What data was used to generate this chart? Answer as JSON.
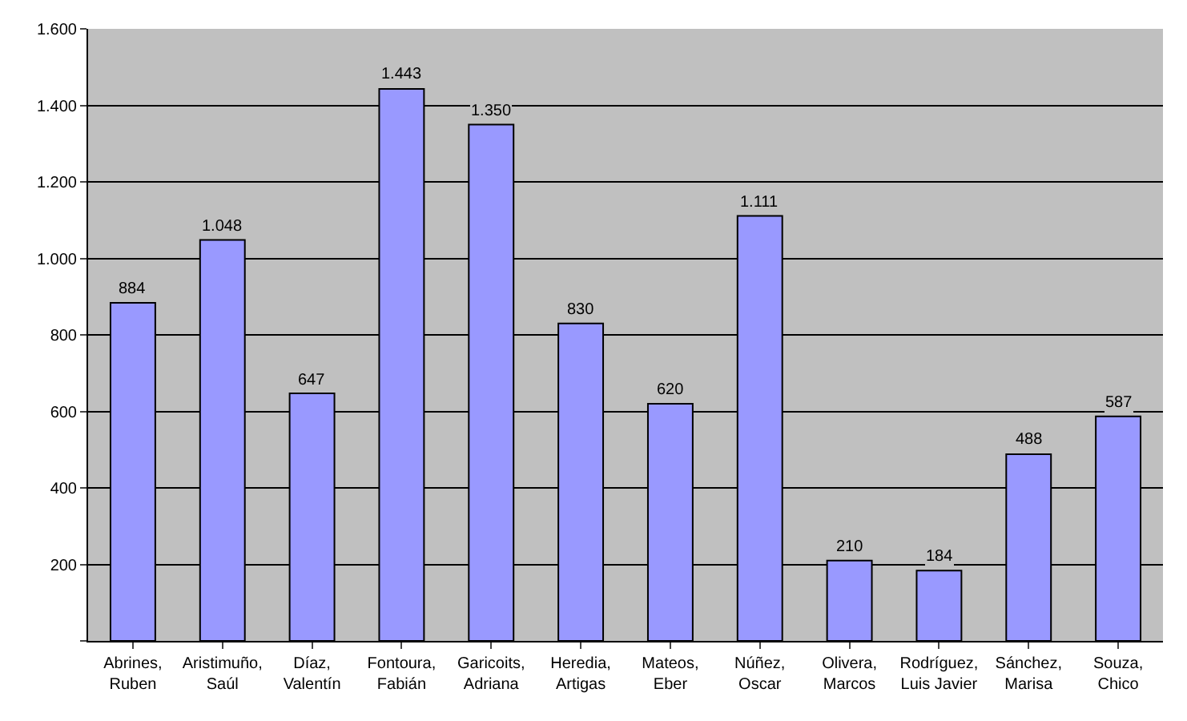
{
  "chart_data": {
    "type": "bar",
    "categories": [
      "Abrines,\nRuben",
      "Aristimuño,\nSaúl",
      "Díaz,\nValentín",
      "Fontoura,\nFabián",
      "Garicoits,\nAdriana",
      "Heredia,\nArtigas",
      "Mateos,\nEber",
      "Núñez,\nOscar",
      "Olivera,\nMarcos",
      "Rodríguez,\nLuis Javier",
      "Sánchez,\nMarisa",
      "Souza,\nChico"
    ],
    "values": [
      884,
      1048,
      647,
      1443,
      1350,
      830,
      620,
      1111,
      210,
      184,
      488,
      587
    ],
    "value_labels": [
      "884",
      "1.048",
      "647",
      "1.443",
      "1.350",
      "830",
      "620",
      "1.111",
      "210",
      "184",
      "488",
      "587"
    ],
    "color": "#9999ff",
    "ylim": [
      0,
      1600
    ],
    "yticks": [
      {
        "value": 0,
        "label": null
      },
      200,
      400,
      600,
      800,
      {
        "value": 1000,
        "label": "1.000"
      },
      {
        "value": 1200,
        "label": "1.200"
      },
      {
        "value": 1400,
        "label": "1.400"
      },
      {
        "value": 1600,
        "label": "1.600"
      }
    ],
    "grid": "y",
    "legend": false
  }
}
